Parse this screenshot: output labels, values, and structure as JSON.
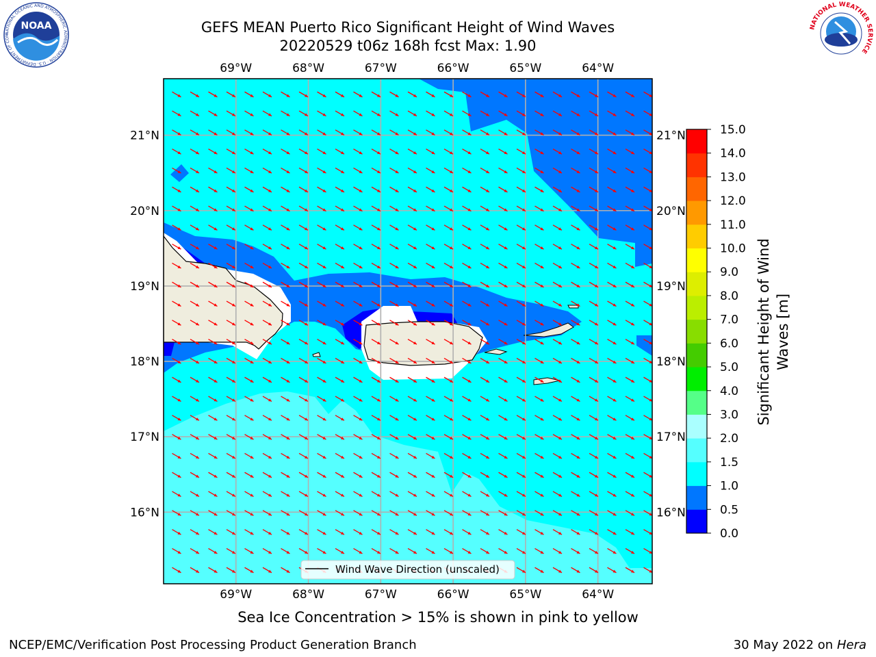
{
  "title": {
    "line1": "GEFS MEAN Puerto Rico Significant Height of Wind Waves",
    "line2": "20220529 t06z 168h fcst   Max: 1.90"
  },
  "map": {
    "lon_labels": [
      "69°W",
      "68°W",
      "67°W",
      "66°W",
      "65°W",
      "64°W"
    ],
    "lat_labels": [
      "21°N",
      "20°N",
      "19°N",
      "18°N",
      "17°N",
      "16°N"
    ],
    "lon_values": [
      -69,
      -68,
      -67,
      -66,
      -65,
      -64
    ],
    "lat_values": [
      21,
      20,
      19,
      18,
      17,
      16
    ],
    "extent": {
      "lon": [
        -70,
        -63.25
      ],
      "lat": [
        15.05,
        21.75
      ]
    },
    "legend_label": "Wind Wave Direction (unscaled)",
    "wave_direction_deg_from_north": 300
  },
  "colorbar": {
    "label": "Significant Height of Wind Waves [m]",
    "label_line1": "Significant Height of Wind",
    "label_line2": "Waves [m]",
    "ticks": [
      "0.0",
      "0.5",
      "1.0",
      "1.5",
      "2.0",
      "3.0",
      "4.0",
      "5.0",
      "6.0",
      "7.0",
      "8.0",
      "9.0",
      "10.0",
      "11.0",
      "12.0",
      "13.0",
      "14.0",
      "15.0"
    ],
    "colors": [
      "#0000ff",
      "#0077ff",
      "#00ffff",
      "#55ffff",
      "#aaffff",
      "#55ff88",
      "#00ee00",
      "#44cc00",
      "#88dd00",
      "#bbee00",
      "#ddee00",
      "#ffff00",
      "#ffcc00",
      "#ff9900",
      "#ff6600",
      "#ff3300",
      "#ff0000"
    ]
  },
  "colors": {
    "land": "#efedde",
    "arrow": "#ff0000",
    "grid": "#b0b0b0",
    "noaa_blue": "#1f3f99",
    "nws_red": "#e0001b"
  },
  "subtitle": "Sea Ice Concentration > 15% is shown in pink to yellow",
  "footer": {
    "left": "NCEP/EMC/Verification Post Processing Product Generation Branch",
    "date": "30 May 2022 on",
    "machine": "Hera"
  },
  "logos": {
    "noaa_text": "NOAA",
    "noaa_ring": "NATIONAL OCEANIC AND ATMOSPHERIC ADMINISTRATION · U.S. DEPARTMENT OF COMMERCE",
    "nws_ring": "NATIONAL WEATHER SERVICE"
  }
}
